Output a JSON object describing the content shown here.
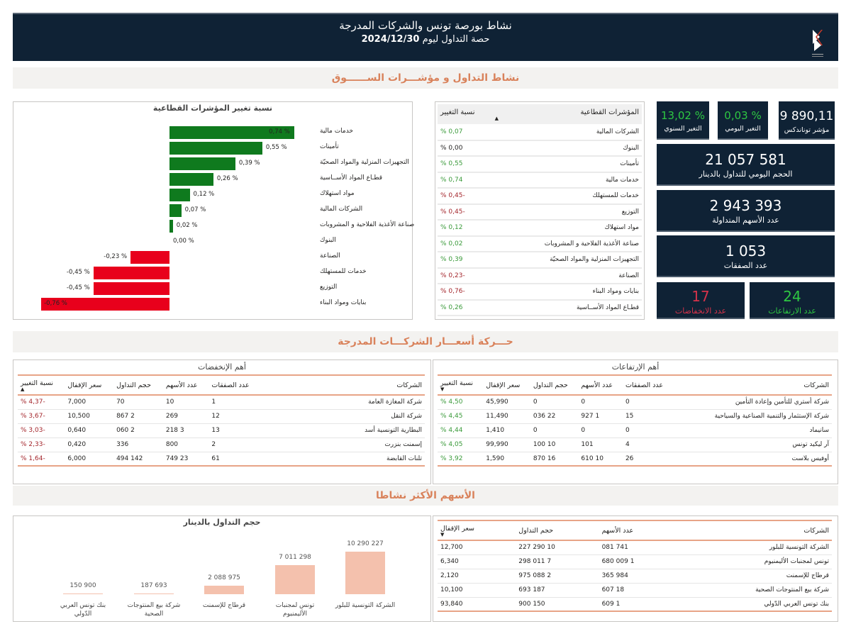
{
  "header": {
    "title": "نشاط بورصة تونس والشركات المدرجة",
    "subtitle_prefix": "حصة التداول ليوم",
    "date": "2024/12/30",
    "logo": "bourse-de-tunis-logo"
  },
  "sections": {
    "market": "نشاط التداول و مؤشـــرات الســــــوق",
    "prices": "حـــركة أسعـــار الشركـــات المدرجة",
    "active": "الأسهم الأكثر نشاطا"
  },
  "colors": {
    "navy": "#0f2235",
    "accent": "#d9825b",
    "positive": "#0f7a1e",
    "negative": "#e8001c",
    "column": "#f4c1ad"
  },
  "kpis": {
    "index": {
      "value": "9 890,11",
      "label": "مؤشر توناندكس"
    },
    "daily": {
      "value": "0,03 %",
      "label": "التغير اليومي"
    },
    "annual": {
      "value": "13,02 %",
      "label": "التغير السنوي"
    },
    "volume": {
      "value": "21 057 581",
      "label": "الحجم اليومي للتداول بالدينار"
    },
    "shares": {
      "value": "2 943 393",
      "label": "عدد الأسهم المتداولة"
    },
    "trades": {
      "value": "1 053",
      "label": "عدد الصفقات"
    },
    "rises": {
      "value": "24",
      "label": "عدد الارتفاعات"
    },
    "falls": {
      "value": "17",
      "label": "عدد الانخفاضات"
    }
  },
  "sector_table": {
    "headers": [
      "المؤشرات القطاعية",
      "نسبة التغيير"
    ],
    "sort_icon": "sort-ascending-icon",
    "rows": [
      [
        "الشركات المالية",
        "0,07 %"
      ],
      [
        "البنوك",
        "0,00 %"
      ],
      [
        "تأمينات",
        "0,55 %"
      ],
      [
        "خدمات مالية",
        "0,74 %"
      ],
      [
        "خدمات للمستهلك",
        "-0,45 %"
      ],
      [
        "التوزيع",
        "-0,45 %"
      ],
      [
        "مواد استهلاك",
        "0,12 %"
      ],
      [
        "صناعة الأغذية الفلاحية و المشروبات",
        "0,02 %"
      ],
      [
        "التجهيزات المنزلية والمواد الصحيّة",
        "0,39 %"
      ],
      [
        "الصناعة",
        "-0,23 %"
      ],
      [
        "بنايات ومواد البناء",
        "-0,76 %"
      ],
      [
        "قطـاع المواد الأســاسية",
        "0,26 %"
      ]
    ]
  },
  "chart_data": [
    {
      "type": "bar",
      "orientation": "horizontal",
      "title": "نسبة تغيير المؤشرات القطاعية",
      "categories": [
        "خدمات مالية",
        "تأمينات",
        "التجهيزات المنزلية والمواد الصحيّة",
        "قطـاع المواد الأســاسية",
        "مواد استهلاك",
        "الشركات المالية",
        "صناعة الأغذية الفلاحية و المشروبات",
        "البنوك",
        "الصناعة",
        "خدمات للمستهلك",
        "التوزيع",
        "بنايات ومواد البناء"
      ],
      "values": [
        0.74,
        0.55,
        0.39,
        0.26,
        0.12,
        0.07,
        0.02,
        0.0,
        -0.23,
        -0.45,
        -0.45,
        -0.76
      ],
      "labels": [
        "0,74 %",
        "0,55 %",
        "0,39 %",
        "0,26 %",
        "0,12 %",
        "0,07 %",
        "0,02 %",
        "0,00 %",
        "-0,23 %",
        "-0,45 %",
        "-0,45 %",
        "-0,76 %"
      ],
      "grid": false
    },
    {
      "type": "bar",
      "orientation": "vertical",
      "title": "حجم التداول بالدينار",
      "categories": [
        "الشركة التونسية للبلور",
        "تونس لمجنبات الأليمنيوم",
        "قرطاج للإسمنت",
        "شركة بيع المنتوجات الصحية",
        "بنك تونس العربي الدّولي"
      ],
      "values": [
        10290227,
        7011298,
        2088975,
        187693,
        150900
      ],
      "labels": [
        "10 290 227",
        "7 011 298",
        "2 088 975",
        "187 693",
        "150 900"
      ],
      "grid": false
    }
  ],
  "risers": {
    "title": "أهم الإرتفاعات",
    "headers": [
      "الشركات",
      "عدد الصفقات",
      "عدد الأسهم",
      "حجم التداول",
      "سعر الإقفال",
      "نسبة التغيير"
    ],
    "sort_icon": "sort-descending-icon",
    "rows": [
      [
        "شركة أستري للتأمين وإعادة التأمين",
        "0",
        "0",
        "0",
        "45,990",
        "4,50 %"
      ],
      [
        "شركة الإستثمار والتنمية الصناعية والسياحية",
        "15",
        "1 927",
        "22 036",
        "11,490",
        "4,45 %"
      ],
      [
        "سانيماد",
        "0",
        "0",
        "0",
        "1,410",
        "4,44 %"
      ],
      [
        "آر ليكيد تونس",
        "4",
        "101",
        "10 100",
        "99,990",
        "4,05 %"
      ],
      [
        "أوفيس بلاست",
        "26",
        "10 610",
        "16 870",
        "1,590",
        "3,92 %"
      ]
    ]
  },
  "fallers": {
    "title": "أهم الإنخفضات",
    "headers": [
      "الشركات",
      "عدد الصفقات",
      "عدد الأسهم",
      "حجم التداول",
      "سعر الإقفال",
      "نسبة التغيير"
    ],
    "sort_icon": "sort-ascending-icon",
    "rows": [
      [
        "شركة المغازة العامة",
        "1",
        "10",
        "70",
        "7,000",
        "-4,37 %"
      ],
      [
        "شركة النقل",
        "12",
        "269",
        "2 867",
        "10,500",
        "-3,67 %"
      ],
      [
        "البطارية التونسية أسد",
        "13",
        "3 218",
        "2 060",
        "0,640",
        "-3,03 %"
      ],
      [
        "إسمنت بنزرت",
        "2",
        "800",
        "336",
        "0,420",
        "-2,33 %"
      ],
      [
        "تلنات القابضة",
        "61",
        "23 749",
        "142 494",
        "6,000",
        "-1,64 %"
      ]
    ]
  },
  "active_table": {
    "headers": [
      "الشركات",
      "عدد الأسهم",
      "حجم التداول",
      "سعر الإقفال"
    ],
    "sort_icon": "sort-descending-icon",
    "rows": [
      [
        "الشركة التونسية للبلور",
        "741 081",
        "10 290 227",
        "12,700"
      ],
      [
        "تونس لمجنبات الأليمنيوم",
        "1 009 680",
        "7 011 298",
        "6,340"
      ],
      [
        "قرطاج للإسمنت",
        "984 365",
        "2 088 975",
        "2,120"
      ],
      [
        "شركة بيع المنتوجات الصحية",
        "18 607",
        "187 693",
        "10,100"
      ],
      [
        "بنك تونس العربي الدّولي",
        "1 609",
        "150 900",
        "93,840"
      ]
    ]
  }
}
